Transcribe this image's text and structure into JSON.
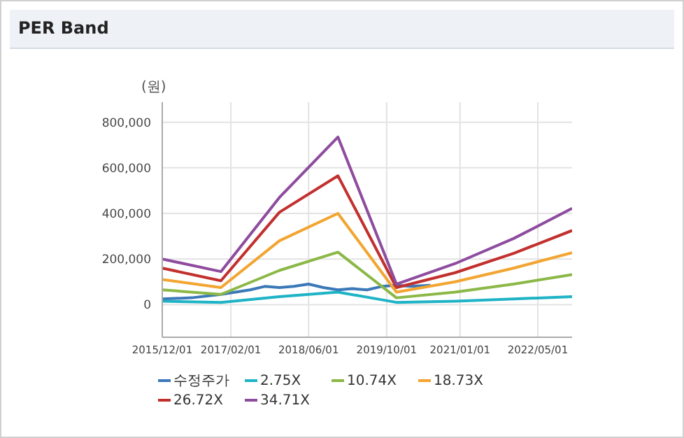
{
  "chart_data": {
    "type": "line",
    "title": "PER Band",
    "ylabel": "(원)",
    "xlim": [
      "2015-12-01",
      "2022-12-01"
    ],
    "xticks": [
      {
        "value": "2015-12-01",
        "label": "2015/12/01"
      },
      {
        "value": "2017-02-01",
        "label": "2017/02/01"
      },
      {
        "value": "2018-06-01",
        "label": "2018/06/01"
      },
      {
        "value": "2019-10-01",
        "label": "2019/10/01"
      },
      {
        "value": "2021-01-01",
        "label": "2021/01/01"
      },
      {
        "value": "2022-05-01",
        "label": "2022/05/01"
      }
    ],
    "ylim": [
      -143000,
      888000
    ],
    "yticks": [
      {
        "value": 0,
        "label": "0"
      },
      {
        "value": 200000,
        "label": "200,000"
      },
      {
        "value": 400000,
        "label": "400,000"
      },
      {
        "value": 600000,
        "label": "600,000"
      },
      {
        "value": 800000,
        "label": "800,000"
      }
    ],
    "grid": true,
    "legend": "bottom",
    "marker": "none",
    "line_style": "solid",
    "series": [
      {
        "name": "수정주가",
        "color": "#3a78b8",
        "x": [
          "2015-12",
          "2016-06",
          "2016-12",
          "2017-06",
          "2017-09",
          "2017-12",
          "2018-03",
          "2018-06",
          "2018-09",
          "2018-12",
          "2019-03",
          "2019-06",
          "2019-09",
          "2019-12",
          "2020-03",
          "2020-07"
        ],
        "values": [
          25000,
          30000,
          45000,
          65000,
          80000,
          75000,
          80000,
          90000,
          75000,
          65000,
          70000,
          65000,
          80000,
          85000,
          80000,
          85000
        ]
      },
      {
        "name": "2.75X",
        "color": "#1fb3c6",
        "x": [
          "2015-12",
          "2016-12",
          "2017-12",
          "2018-12",
          "2019-12",
          "2020-12",
          "2021-12",
          "2022-12"
        ],
        "values": [
          15000,
          10000,
          35000,
          55000,
          10000,
          15000,
          25000,
          35000
        ]
      },
      {
        "name": "10.74X",
        "color": "#8bb847",
        "x": [
          "2015-12",
          "2016-12",
          "2017-12",
          "2018-12",
          "2019-12",
          "2020-12",
          "2021-12",
          "2022-12"
        ],
        "values": [
          65000,
          45000,
          150000,
          230000,
          30000,
          55000,
          90000,
          132000
        ]
      },
      {
        "name": "18.73X",
        "color": "#f2a531",
        "x": [
          "2015-12",
          "2016-12",
          "2017-12",
          "2018-12",
          "2019-12",
          "2020-12",
          "2021-12",
          "2022-12"
        ],
        "values": [
          110000,
          75000,
          280000,
          400000,
          55000,
          100000,
          160000,
          228000
        ]
      },
      {
        "name": "26.72X",
        "color": "#c2302e",
        "x": [
          "2015-12",
          "2016-12",
          "2017-12",
          "2018-12",
          "2019-12",
          "2020-12",
          "2021-12",
          "2022-12"
        ],
        "values": [
          160000,
          105000,
          405000,
          565000,
          75000,
          140000,
          225000,
          325000
        ]
      },
      {
        "name": "34.71X",
        "color": "#8e4c9e",
        "x": [
          "2015-12",
          "2016-12",
          "2017-12",
          "2018-12",
          "2019-12",
          "2020-12",
          "2021-12",
          "2022-12"
        ],
        "values": [
          200000,
          145000,
          470000,
          735000,
          90000,
          180000,
          290000,
          422000
        ]
      }
    ]
  }
}
